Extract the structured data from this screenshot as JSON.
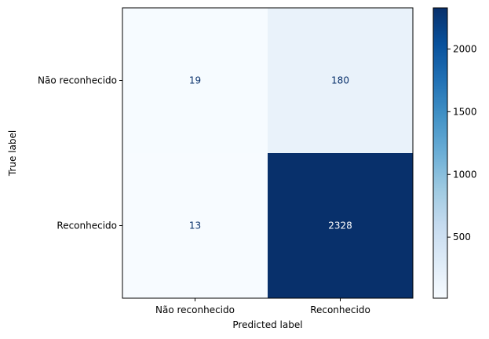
{
  "chart_data": {
    "type": "heatmap",
    "title": "",
    "xlabel": "Predicted label",
    "ylabel": "True label",
    "x_categories": [
      "Não reconhecido",
      "Reconhecido"
    ],
    "y_categories": [
      "Não reconhecido",
      "Reconhecido"
    ],
    "matrix": [
      [
        19,
        180
      ],
      [
        13,
        2328
      ]
    ],
    "colormap": "Blues",
    "colorbar": {
      "range": [
        13,
        2328
      ],
      "ticks": [
        500,
        1000,
        1500,
        2000
      ],
      "tick_labels": [
        "500",
        "1000",
        "1500",
        "2000"
      ]
    },
    "colors": {
      "low": "#f7fbff",
      "high": "#08306b",
      "text_dark_cell": "#ffffff",
      "text_light_cell": "#08306b"
    }
  }
}
